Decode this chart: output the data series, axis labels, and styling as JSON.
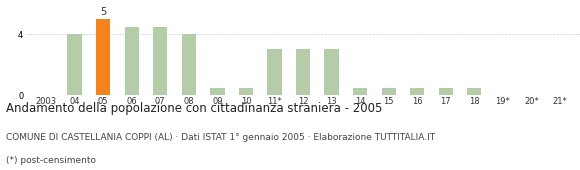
{
  "categories": [
    "2003",
    "04",
    "05",
    "06",
    "07",
    "08",
    "09",
    "10",
    "11*",
    "12",
    "13",
    "14",
    "15",
    "16",
    "17",
    "18",
    "19*",
    "20*",
    "21*"
  ],
  "values": [
    0,
    4,
    5,
    4.5,
    4.5,
    4,
    0.5,
    0.5,
    3,
    3,
    3,
    0.5,
    0.5,
    0.5,
    0.5,
    0.5,
    0,
    0,
    0
  ],
  "bar_colors": [
    "#b5cca9",
    "#b5cca9",
    "#f4821e",
    "#b5cca9",
    "#b5cca9",
    "#b5cca9",
    "#b5cca9",
    "#b5cca9",
    "#b5cca9",
    "#b5cca9",
    "#b5cca9",
    "#b5cca9",
    "#b5cca9",
    "#b5cca9",
    "#b5cca9",
    "#b5cca9",
    "#b5cca9",
    "#b5cca9",
    "#b5cca9"
  ],
  "highlighted_index": 2,
  "highlight_label": "5",
  "ylim": [
    0,
    5.8
  ],
  "yticks": [
    0,
    4
  ],
  "title": "Andamento della popolazione con cittadinanza straniera - 2005",
  "subtitle": "COMUNE DI CASTELLANIA COPPI (AL) · Dati ISTAT 1° gennaio 2005 · Elaborazione TUTTITALIA.IT",
  "footnote": "(*) post-censimento",
  "title_fontsize": 8.5,
  "subtitle_fontsize": 6.5,
  "footnote_fontsize": 6.5,
  "background_color": "#ffffff",
  "grid_color": "#cccccc",
  "bar_width": 0.5
}
